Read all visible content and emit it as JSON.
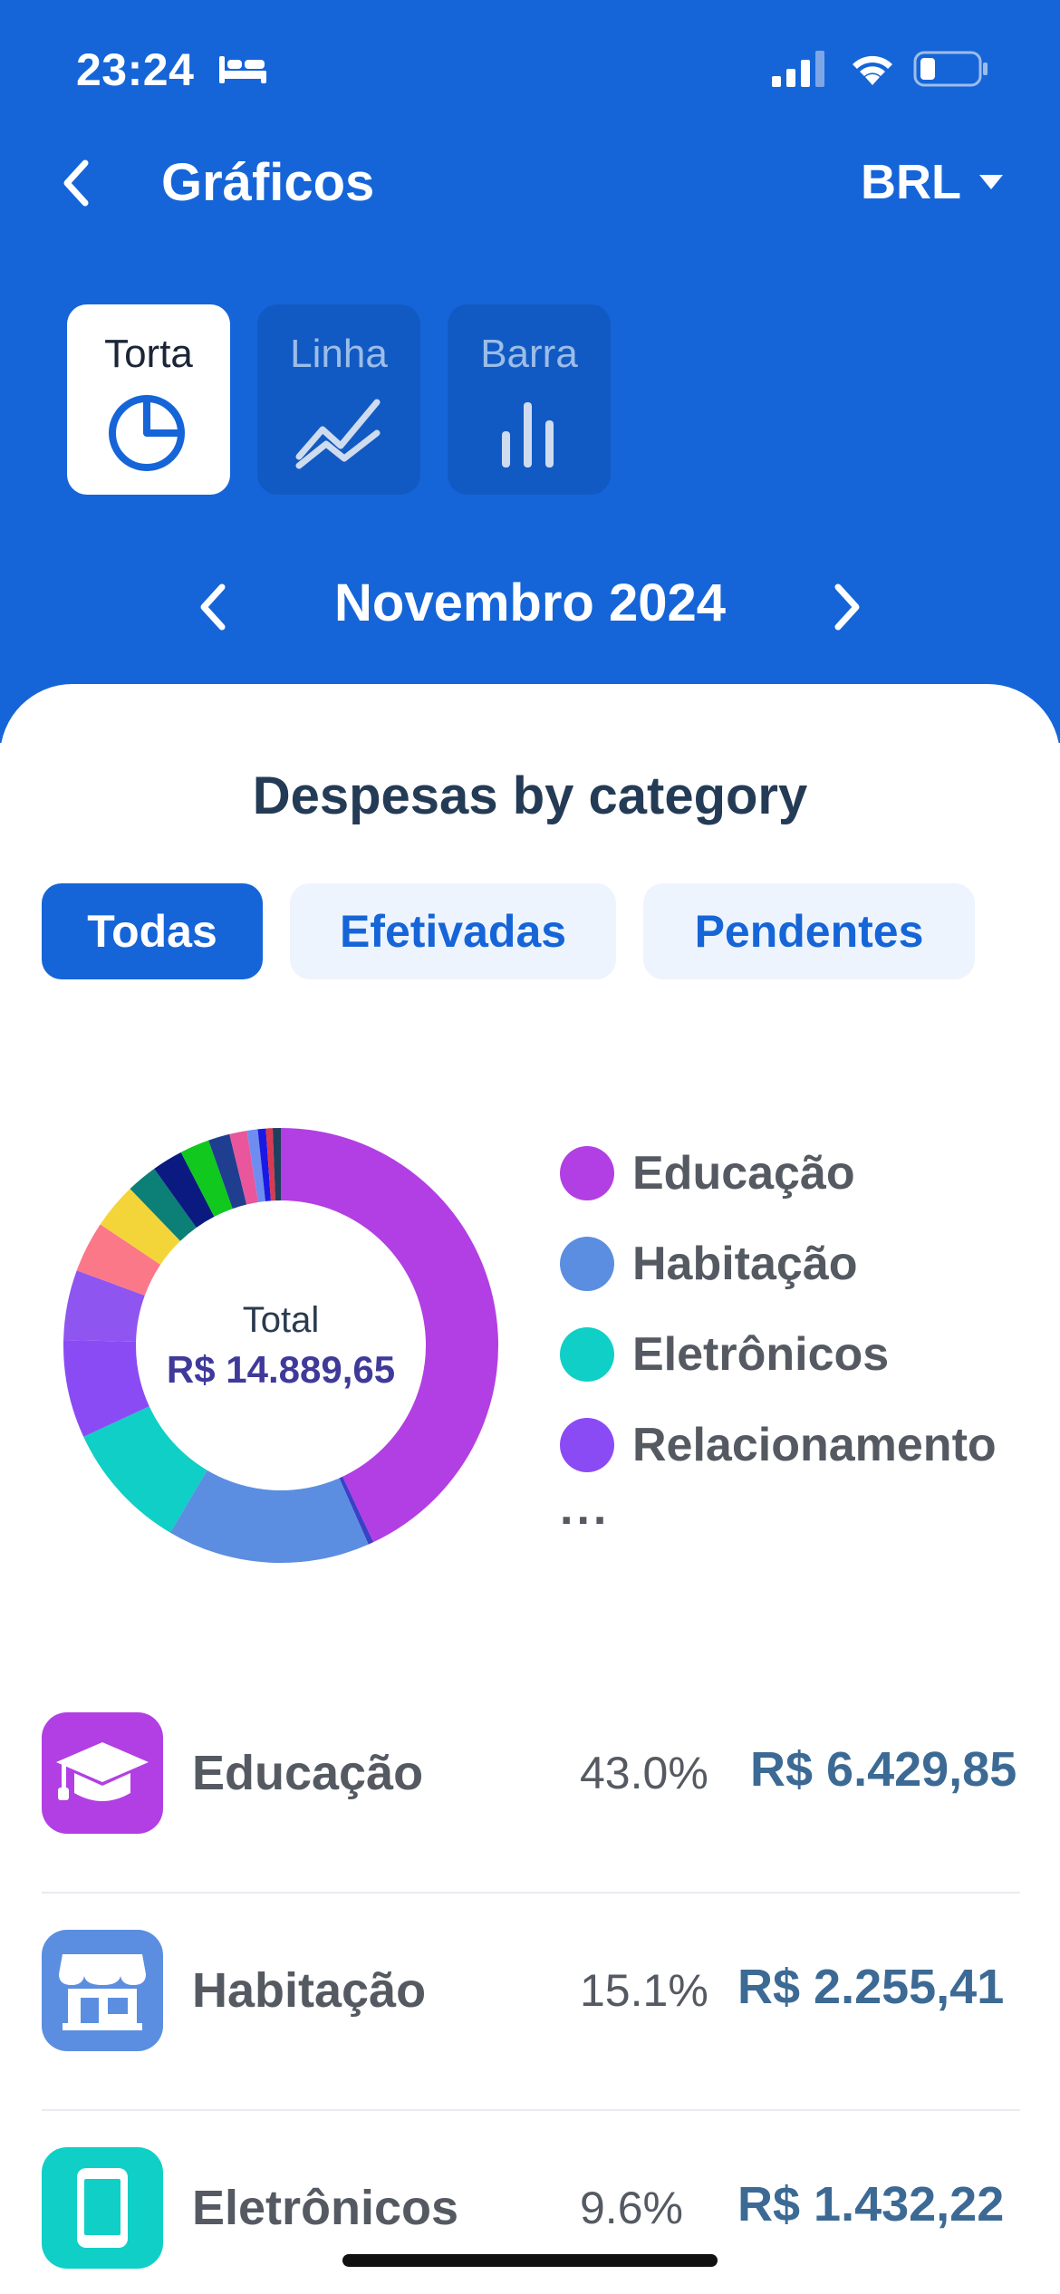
{
  "status_bar": {
    "time": "23:24"
  },
  "nav": {
    "title": "Gráficos",
    "currency": "BRL"
  },
  "chart_types": [
    {
      "label": "Torta",
      "icon": "pie-chart-icon",
      "active": true
    },
    {
      "label": "Linha",
      "icon": "line-chart-icon",
      "active": false
    },
    {
      "label": "Barra",
      "icon": "bar-chart-icon",
      "active": false
    }
  ],
  "period": {
    "label": "Novembro 2024"
  },
  "section": {
    "title": "Despesas by category"
  },
  "filters": [
    {
      "label": "Todas",
      "active": true
    },
    {
      "label": "Efetivadas",
      "active": false
    },
    {
      "label": "Pendentes",
      "active": false
    }
  ],
  "donut": {
    "total_label": "Total",
    "total_value": "R$ 14.889,65"
  },
  "legend": {
    "items": [
      {
        "label": "Educação",
        "color": "#b23fe3"
      },
      {
        "label": "Habitação",
        "color": "#5b8ee0"
      },
      {
        "label": "Eletrônicos",
        "color": "#0fcfc6"
      },
      {
        "label": "Relacionamento",
        "color": "#8a4bf5"
      }
    ],
    "more": "..."
  },
  "chart_data": {
    "type": "pie",
    "style": "donut",
    "values": [
      43.0,
      0.4,
      15.1,
      9.6,
      7.3,
      5.2,
      3.8,
      3.4,
      2.3,
      2.3,
      2.2,
      1.6,
      1.3,
      0.8,
      0.6,
      0.5,
      0.6
    ],
    "colors": [
      "#b23fe3",
      "#3b40c8",
      "#5b8ee0",
      "#0fcfc6",
      "#8a4bf5",
      "#8f55f0",
      "#fb7889",
      "#f3d53a",
      "#0c7f77",
      "#0b1a80",
      "#10c81e",
      "#1f3e8f",
      "#e9569b",
      "#6f8df0",
      "#1a19e3",
      "#d93a52",
      "#1f3f5f"
    ]
  },
  "categories": [
    {
      "name": "Educação",
      "percent": "43.0%",
      "amount": "R$ 6.429,85",
      "color": "#b23fe3",
      "icon": "graduation-cap-icon"
    },
    {
      "name": "Habitação",
      "percent": "15.1%",
      "amount": "R$ 2.255,41",
      "color": "#5b8ee0",
      "icon": "storefront-icon"
    },
    {
      "name": "Eletrônicos",
      "percent": "9.6%",
      "amount": "R$ 1.432,22",
      "color": "#0fcfc6",
      "icon": "smartphone-icon"
    }
  ]
}
